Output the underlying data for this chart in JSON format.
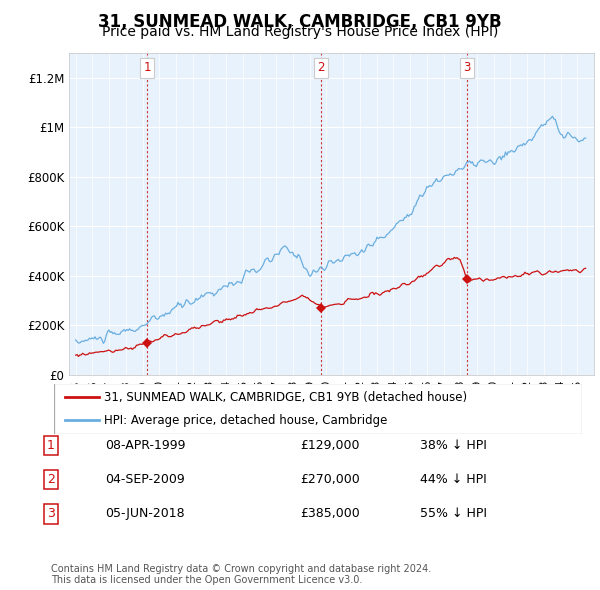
{
  "title": "31, SUNMEAD WALK, CAMBRIDGE, CB1 9YB",
  "subtitle": "Price paid vs. HM Land Registry's House Price Index (HPI)",
  "ylim": [
    0,
    1300000
  ],
  "yticks": [
    0,
    200000,
    400000,
    600000,
    800000,
    1000000,
    1200000
  ],
  "ytick_labels": [
    "£0",
    "£200K",
    "£400K",
    "£600K",
    "£800K",
    "£1M",
    "£1.2M"
  ],
  "red_color": "#cc1111",
  "blue_color": "#6aaee0",
  "bg_blue": "#e8f2fc",
  "legend_label_red": "31, SUNMEAD WALK, CAMBRIDGE, CB1 9YB (detached house)",
  "legend_label_blue": "HPI: Average price, detached house, Cambridge",
  "transactions": [
    {
      "label": "1",
      "date": "08-APR-1999",
      "price": 129000,
      "pct": "38%",
      "year_float": 1999.27
    },
    {
      "label": "2",
      "date": "04-SEP-2009",
      "price": 270000,
      "pct": "44%",
      "year_float": 2009.67
    },
    {
      "label": "3",
      "date": "05-JUN-2018",
      "price": 385000,
      "pct": "55%",
      "year_float": 2018.42
    }
  ],
  "vline_years": [
    1999.27,
    2009.67,
    2018.42
  ],
  "table_rows": [
    [
      "1",
      "08-APR-1999",
      "£129,000",
      "38% ↓ HPI"
    ],
    [
      "2",
      "04-SEP-2009",
      "£270,000",
      "44% ↓ HPI"
    ],
    [
      "3",
      "05-JUN-2018",
      "£385,000",
      "55% ↓ HPI"
    ]
  ],
  "footnote": "Contains HM Land Registry data © Crown copyright and database right 2024.\nThis data is licensed under the Open Government Licence v3.0.",
  "background_color": "#ffffff",
  "grid_color": "#cccccc",
  "title_fontsize": 12,
  "subtitle_fontsize": 10
}
